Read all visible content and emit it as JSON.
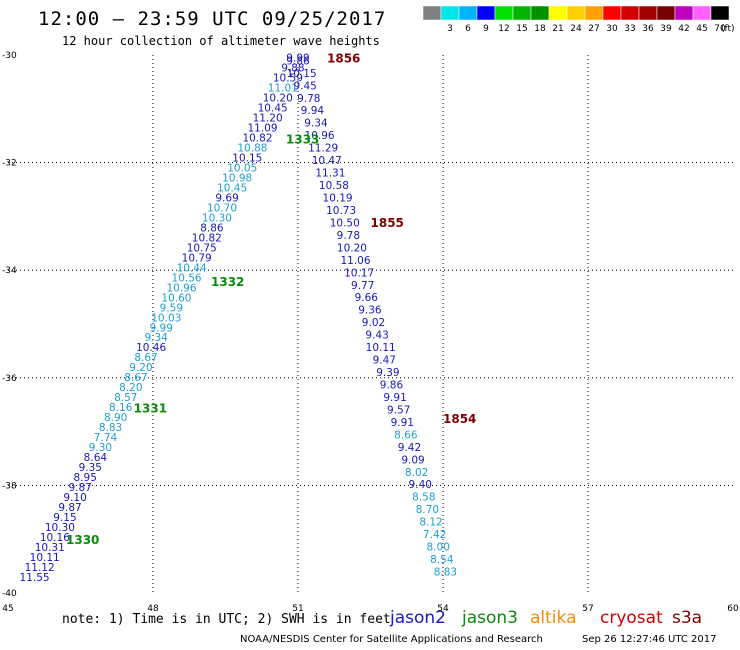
{
  "title": "12:00 – 23:59 UTC 09/25/2017",
  "subtitle": "12 hour collection of altimeter wave heights",
  "note": "note: 1) Time is in UTC; 2) SWH is in feet",
  "credit": "NOAA/NESDIS Center for Satellite Applications and Research",
  "timestamp": "Sep 26 12:27:46 UTC 2017",
  "satellites": [
    {
      "name": "jason2",
      "color": "#1818c8"
    },
    {
      "name": "jason3",
      "color": "#0a8a0a"
    },
    {
      "name": "altika",
      "color": "#ff8c00"
    },
    {
      "name": "cryosat",
      "color": "#d80000"
    },
    {
      "name": "s3a",
      "color": "#800000"
    }
  ],
  "legend": {
    "unit": "(ft)",
    "items": [
      {
        "label": "",
        "color": "#808080"
      },
      {
        "label": "3",
        "color": "#00e5e5"
      },
      {
        "label": "6",
        "color": "#00b4ff"
      },
      {
        "label": "9",
        "color": "#0000ff"
      },
      {
        "label": "12",
        "color": "#00e000"
      },
      {
        "label": "15",
        "color": "#00b400"
      },
      {
        "label": "18",
        "color": "#009000"
      },
      {
        "label": "21",
        "color": "#ffff00"
      },
      {
        "label": "24",
        "color": "#ffd000"
      },
      {
        "label": "27",
        "color": "#ffa000"
      },
      {
        "label": "30",
        "color": "#ff0000"
      },
      {
        "label": "33",
        "color": "#d00000"
      },
      {
        "label": "36",
        "color": "#a00000"
      },
      {
        "label": "39",
        "color": "#780000"
      },
      {
        "label": "42",
        "color": "#c000c0"
      },
      {
        "label": "45",
        "color": "#ff60ff"
      },
      {
        "label": "70",
        "color": "#000000"
      }
    ]
  },
  "axes": {
    "lon_labels": [
      "45",
      "48",
      "51",
      "54",
      "57",
      "60"
    ],
    "lat_labels": [
      "-30",
      "-32",
      "-34",
      "-36",
      "-38",
      "-40"
    ]
  },
  "chart_data": {
    "type": "scatter",
    "xlim": [
      45,
      60
    ],
    "ylim": [
      -40,
      -30
    ],
    "colors": {
      "dark": "#1818b8",
      "light": "#1ea0d2",
      "time": "#0a8a0a",
      "time2": "#800000"
    },
    "tracks": [
      {
        "start": [
          45.55,
          -39.7
        ],
        "end": [
          51.0,
          -30.05
        ],
        "values": [
          "11.55",
          "11.12",
          "10.11",
          "10.31",
          "10.16",
          "10.30",
          "9.15",
          "9.87",
          "9.10",
          "9.87",
          "8.95",
          "9.35",
          "8.64",
          "9.30",
          "7.74",
          "8.83",
          "8.90",
          "8.16",
          "8.57",
          "8.20",
          "8.67",
          "9.20",
          "8.67",
          "10.46",
          "9.34",
          "9.99",
          "10.03",
          "9.59",
          "10.60",
          "10.96",
          "10.56",
          "10.44",
          "10.79",
          "10.75",
          "10.82",
          "8.86",
          "10.30",
          "10.70",
          "9.69",
          "10.45",
          "10.98",
          "10.05",
          "10.15",
          "10.88",
          "10.82",
          "11.09",
          "11.20",
          "10.45",
          "10.20",
          "11.01",
          "10.59",
          "9.88",
          "9.99"
        ],
        "light_indices": [
          13,
          14,
          15,
          16,
          17,
          18,
          19,
          20,
          21,
          22,
          24,
          25,
          26,
          27,
          28,
          29,
          30,
          31,
          36,
          37,
          39,
          40,
          41,
          43,
          49
        ]
      },
      {
        "start": [
          51.0,
          -30.1
        ],
        "end": [
          54.05,
          -39.6
        ],
        "values": [
          "9.86",
          "10.15",
          "9.45",
          "9.78",
          "9.94",
          "9.34",
          "10.96",
          "11.29",
          "10.47",
          "11.31",
          "10.58",
          "10.19",
          "10.73",
          "10.50",
          "9.78",
          "10.20",
          "11.06",
          "10.17",
          "9.77",
          "9.66",
          "9.36",
          "9.02",
          "9.43",
          "10.11",
          "9.47",
          "9.39",
          "9.86",
          "9.91",
          "9.57",
          "9.91",
          "8.66",
          "9.42",
          "9.09",
          "8.02",
          "9.40",
          "8.58",
          "8.70",
          "8.12",
          "7.42",
          "8.00",
          "8.54",
          "8.83"
        ],
        "light_indices": [
          30,
          33,
          35,
          36,
          37,
          38,
          39,
          40,
          41
        ]
      }
    ],
    "time_labels": [
      {
        "text": "1330",
        "lon": 46.2,
        "lat": -39.0,
        "kind": "time"
      },
      {
        "text": "1331",
        "lon": 47.6,
        "lat": -36.55,
        "kind": "time"
      },
      {
        "text": "1332",
        "lon": 49.2,
        "lat": -34.2,
        "kind": "time"
      },
      {
        "text": "1333",
        "lon": 50.75,
        "lat": -31.55,
        "kind": "time"
      },
      {
        "text": "1854",
        "lon": 54.0,
        "lat": -36.75,
        "kind": "time2"
      },
      {
        "text": "1855",
        "lon": 52.5,
        "lat": -33.1,
        "kind": "time2"
      },
      {
        "text": "1856",
        "lon": 51.6,
        "lat": -30.05,
        "kind": "time2"
      }
    ]
  }
}
